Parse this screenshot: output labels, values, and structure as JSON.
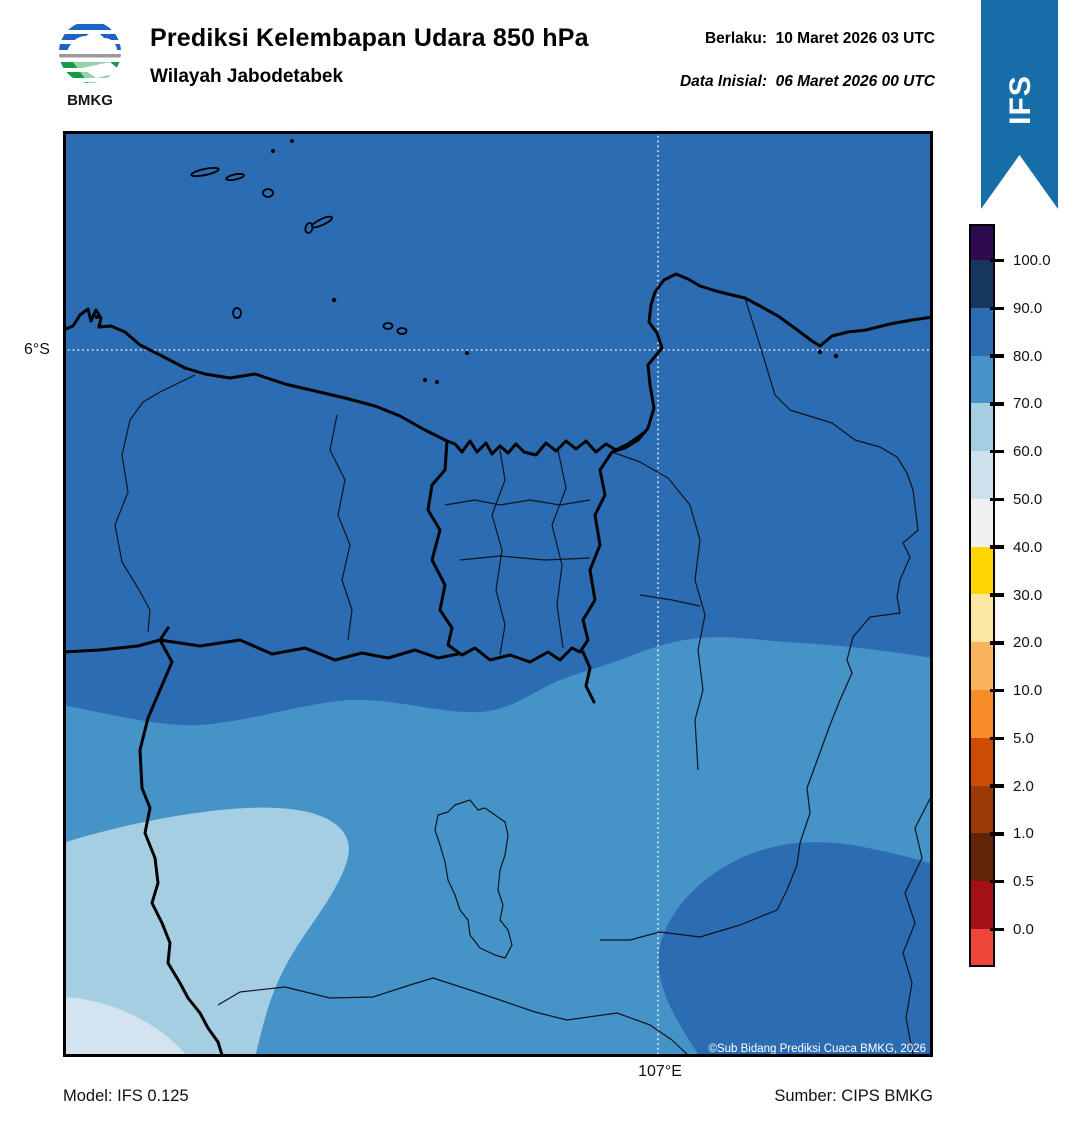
{
  "header": {
    "logo_label": "BMKG",
    "title": "Prediksi Kelembapan Udara 850 hPa",
    "subtitle": "Wilayah Jabodetabek",
    "valid_line": "Berlaku:  10 Maret 2026 03 UTC",
    "init_line": "Data Inisial:  06 Maret 2026 00 UTC"
  },
  "ribbon": {
    "label": "IFS"
  },
  "map": {
    "lat_tick_label": "6°S",
    "lon_tick_label": "107°E",
    "copyright": "©Sub Bidang Prediksi Cuaca BMKG, 2026"
  },
  "footer": {
    "model": "Model: IFS 0.125",
    "source": "Sumber: CIPS BMKG"
  },
  "colorbar": {
    "tick_labels": [
      "100.0",
      "90.0",
      "80.0",
      "70.0",
      "60.0",
      "50.0",
      "40.0",
      "30.0",
      "20.0",
      "10.0",
      "5.0",
      "2.0",
      "1.0",
      "0.5",
      "0.0"
    ],
    "segment_colors": [
      "#2e0a4f",
      "#17365f",
      "#2b6cb3",
      "#4593c7",
      "#a6cee3",
      "#d0e1ee",
      "#f0f0f2",
      "#ffd500",
      "#fbe7a1",
      "#fbb25c",
      "#f78c29",
      "#cc4c02",
      "#9b3a06",
      "#602508",
      "#a31117",
      "#ef4538"
    ]
  },
  "colors": {
    "rh_80_90": "#2b6cb3",
    "rh_70_80": "#4593c7",
    "rh_60_70": "#a6cee3",
    "rh_50_60": "#d3e3ef",
    "ribbon_blue": "#176da7",
    "logo_blue": "#1d64c2",
    "logo_green": "#169a44",
    "logo_gray": "#9a9a9a",
    "grid_dots": "#ffffff",
    "frame_black": "#000000"
  },
  "chart_data": {
    "type": "heatmap",
    "title": "Prediksi Kelembapan Udara 850 hPa",
    "region": "Wilayah Jabodetabek",
    "valid_time": "10 Maret 2026 03 UTC",
    "initial_time": "06 Maret 2026 00 UTC",
    "model": "IFS 0.125",
    "source": "CIPS BMKG",
    "x_tick": "107°E",
    "y_tick": "6°S",
    "colorbar_levels": [
      0.0,
      0.5,
      1.0,
      2.0,
      5.0,
      10.0,
      20.0,
      30.0,
      40.0,
      50.0,
      60.0,
      70.0,
      80.0,
      90.0,
      100.0
    ],
    "colorbar_colors_low_to_high": [
      "#ef4538",
      "#a31117",
      "#602508",
      "#9b3a06",
      "#cc4c02",
      "#f78c29",
      "#fbb25c",
      "#fbe7a1",
      "#ffd500",
      "#f0f0f2",
      "#d0e1ee",
      "#a6cee3",
      "#4593c7",
      "#2b6cb3",
      "#17365f",
      "#2e0a4f"
    ],
    "visible_zones": [
      {
        "value_range": "80-90",
        "area": "entire northern half of map (Java Sea and Jakarta area) plus large blob in the southeast corner"
      },
      {
        "value_range": "70-80",
        "area": "wavy band across the central-southern part of the map"
      },
      {
        "value_range": "60-70",
        "area": "large lobe in the southwest reaching the left edge and bottom edge"
      },
      {
        "value_range": "50-60",
        "area": "small patch in the bottom-left corner"
      }
    ],
    "legend_position": "right",
    "grid": "dotted graticule at 107°E and 6°S"
  }
}
